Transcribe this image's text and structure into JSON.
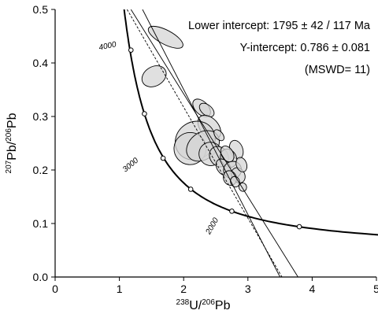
{
  "chart_data": {
    "type": "scatter",
    "title": "",
    "xlabel": {
      "sup": "238",
      "text": "U/",
      "sup2": "206",
      "text2": "Pb"
    },
    "ylabel": {
      "sup": "207",
      "text": "Pb/",
      "sup2": "206",
      "text2": "Pb"
    },
    "xlim": [
      0,
      5
    ],
    "ylim": [
      0,
      0.5
    ],
    "x_ticks": [
      "0",
      "1",
      "2",
      "3",
      "4",
      "5"
    ],
    "y_ticks": [
      "0.0",
      "0.1",
      "0.2",
      "0.3",
      "0.4",
      "0.5"
    ],
    "grid": false,
    "annotations": [
      "Lower intercept: 1795 ± 42 / 117 Ma",
      "Y-intercept: 0.786 ± 0.081",
      "(MSWD= 11)"
    ],
    "concordia": {
      "points": [
        {
          "age": "4000",
          "x": 1.18,
          "y": 0.424
        },
        {
          "age": "3500",
          "x": 1.39,
          "y": 0.305
        },
        {
          "age": "3000",
          "x": 1.68,
          "y": 0.222
        },
        {
          "age": "2500",
          "x": 2.11,
          "y": 0.164
        },
        {
          "age": "2000",
          "x": 2.75,
          "y": 0.123
        },
        {
          "age": "1500",
          "x": 3.8,
          "y": 0.094
        }
      ],
      "labels": [
        "4000",
        "3000",
        "2000"
      ]
    },
    "regression": {
      "main": {
        "x0": 1.12,
        "y0": 0.5,
        "x1": 3.53,
        "y1": 0.0
      },
      "error_upper": {
        "x0": 1.18,
        "y0": 0.5,
        "x1": 3.78,
        "y1": 0.0
      },
      "error_lower": {
        "x0": 1.36,
        "y0": 0.5,
        "x1": 3.5,
        "y1": 0.0
      }
    },
    "ellipses": [
      {
        "x": 1.72,
        "y": 0.448,
        "rx": 0.11,
        "ry": 0.036,
        "rot": -62
      },
      {
        "x": 1.54,
        "y": 0.375,
        "rx": 0.2,
        "ry": 0.018,
        "rot": -30
      },
      {
        "x": 2.28,
        "y": 0.316,
        "rx": 0.1,
        "ry": 0.02,
        "rot": -45
      },
      {
        "x": 2.36,
        "y": 0.312,
        "rx": 0.08,
        "ry": 0.016,
        "rot": -50
      },
      {
        "x": 2.4,
        "y": 0.28,
        "rx": 0.14,
        "ry": 0.026,
        "rot": -42
      },
      {
        "x": 2.18,
        "y": 0.255,
        "rx": 0.32,
        "ry": 0.035,
        "rot": -35
      },
      {
        "x": 2.1,
        "y": 0.24,
        "rx": 0.25,
        "ry": 0.03,
        "rot": -40
      },
      {
        "x": 2.3,
        "y": 0.245,
        "rx": 0.28,
        "ry": 0.025,
        "rot": -38
      },
      {
        "x": 2.42,
        "y": 0.23,
        "rx": 0.18,
        "ry": 0.022,
        "rot": -32
      },
      {
        "x": 2.55,
        "y": 0.225,
        "rx": 0.14,
        "ry": 0.02,
        "rot": -35
      },
      {
        "x": 2.82,
        "y": 0.238,
        "rx": 0.1,
        "ry": 0.018,
        "rot": -20
      },
      {
        "x": 2.7,
        "y": 0.222,
        "rx": 0.12,
        "ry": 0.018,
        "rot": -30
      },
      {
        "x": 2.62,
        "y": 0.205,
        "rx": 0.1,
        "ry": 0.017,
        "rot": -35
      },
      {
        "x": 2.76,
        "y": 0.2,
        "rx": 0.14,
        "ry": 0.016,
        "rot": -25
      },
      {
        "x": 2.85,
        "y": 0.19,
        "rx": 0.1,
        "ry": 0.015,
        "rot": -30
      },
      {
        "x": 2.72,
        "y": 0.185,
        "rx": 0.1,
        "ry": 0.014,
        "rot": -25
      },
      {
        "x": 2.9,
        "y": 0.21,
        "rx": 0.08,
        "ry": 0.014,
        "rot": -20
      },
      {
        "x": 2.68,
        "y": 0.23,
        "rx": 0.09,
        "ry": 0.016,
        "rot": -30
      },
      {
        "x": 2.55,
        "y": 0.265,
        "rx": 0.06,
        "ry": 0.012,
        "rot": -40
      },
      {
        "x": 2.92,
        "y": 0.168,
        "rx": 0.06,
        "ry": 0.008,
        "rot": -15
      },
      {
        "x": 2.8,
        "y": 0.178,
        "rx": 0.07,
        "ry": 0.01,
        "rot": -20
      }
    ],
    "colors": {
      "ellipse_fill": "#d6d6d6",
      "stroke": "#000000"
    }
  }
}
